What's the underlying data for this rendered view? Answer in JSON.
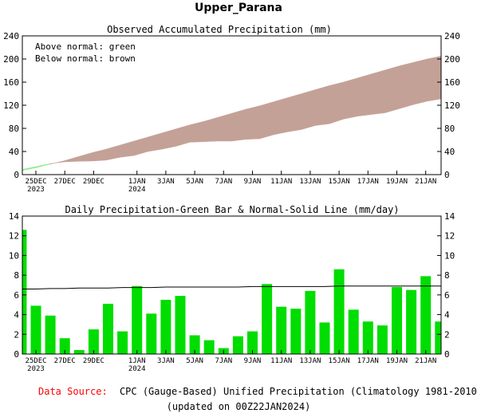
{
  "title": "Upper_Parana",
  "x_labels": [
    {
      "day": 0,
      "lines": [
        "25DEC",
        "2023"
      ]
    },
    {
      "day": 2,
      "lines": [
        "27DEC"
      ]
    },
    {
      "day": 4,
      "lines": [
        "29DEC"
      ]
    },
    {
      "day": 7,
      "lines": [
        "1JAN",
        "2024"
      ]
    },
    {
      "day": 9,
      "lines": [
        "3JAN"
      ]
    },
    {
      "day": 11,
      "lines": [
        "5JAN"
      ]
    },
    {
      "day": 13,
      "lines": [
        "7JAN"
      ]
    },
    {
      "day": 15,
      "lines": [
        "9JAN"
      ]
    },
    {
      "day": 17,
      "lines": [
        "11JAN"
      ]
    },
    {
      "day": 19,
      "lines": [
        "13JAN"
      ]
    },
    {
      "day": 21,
      "lines": [
        "15JAN"
      ]
    },
    {
      "day": 23,
      "lines": [
        "17JAN"
      ]
    },
    {
      "day": 25,
      "lines": [
        "19JAN"
      ]
    },
    {
      "day": 27,
      "lines": [
        "21JAN"
      ]
    }
  ],
  "chart_data": [
    {
      "type": "area",
      "title": "Observed Accumulated Precipitation (mm)",
      "legend": [
        "Above normal: green",
        "Below normal: brown"
      ],
      "legend_placement": "top-left",
      "colors": {
        "above": "#90ee90",
        "below": "#c4a197"
      },
      "ylim": [
        0,
        240
      ],
      "yticks": [
        0,
        40,
        80,
        120,
        160,
        200,
        240
      ],
      "x": [
        "23DEC",
        "24DEC",
        "25DEC",
        "26DEC",
        "27DEC",
        "28DEC",
        "29DEC",
        "30DEC",
        "31DEC",
        "1JAN",
        "2JAN",
        "3JAN",
        "4JAN",
        "5JAN",
        "6JAN",
        "7JAN",
        "8JAN",
        "9JAN",
        "10JAN",
        "11JAN",
        "12JAN",
        "13JAN",
        "14JAN",
        "15JAN",
        "16JAN",
        "17JAN",
        "18JAN",
        "19JAN",
        "20JAN",
        "21JAN",
        "22JAN"
      ],
      "series": [
        {
          "name": "Observed",
          "values": [
            9,
            14,
            19,
            22,
            23,
            23.5,
            25,
            30,
            33,
            40,
            44,
            49,
            56,
            57,
            58,
            58,
            61,
            62,
            69,
            74,
            78,
            85,
            88,
            96,
            101,
            104,
            107,
            114,
            121,
            127,
            131
          ]
        },
        {
          "name": "Normal",
          "values": [
            7,
            12,
            18,
            24,
            31,
            38,
            44,
            51,
            58,
            65,
            72,
            79,
            86,
            92,
            99,
            106,
            113,
            119,
            126,
            133,
            140,
            147,
            154,
            160,
            167,
            174,
            181,
            188,
            194,
            200,
            205
          ]
        }
      ]
    },
    {
      "type": "bar",
      "title": "Daily Precipitation-Green Bar & Normal-Solid Line (mm/day)",
      "colors": {
        "bar": "#00dd00",
        "line": "#000000"
      },
      "ylim": [
        0,
        14
      ],
      "yticks": [
        0,
        2,
        4,
        6,
        8,
        10,
        12,
        14
      ],
      "categories": [
        "24DEC",
        "25DEC",
        "26DEC",
        "27DEC",
        "28DEC",
        "29DEC",
        "30DEC",
        "31DEC",
        "1JAN",
        "2JAN",
        "3JAN",
        "4JAN",
        "5JAN",
        "6JAN",
        "7JAN",
        "8JAN",
        "9JAN",
        "10JAN",
        "11JAN",
        "12JAN",
        "13JAN",
        "14JAN",
        "15JAN",
        "16JAN",
        "17JAN",
        "18JAN",
        "19JAN",
        "20JAN",
        "21JAN",
        "22JAN"
      ],
      "series": [
        {
          "name": "Daily Precipitation",
          "values": [
            12.6,
            4.9,
            3.9,
            1.6,
            0.4,
            2.5,
            5.1,
            2.3,
            6.9,
            4.1,
            5.5,
            5.9,
            1.9,
            1.4,
            0.6,
            1.8,
            2.3,
            7.1,
            4.8,
            4.6,
            6.4,
            3.2,
            8.6,
            4.5,
            3.3,
            2.9,
            6.8,
            6.5,
            7.9,
            3.3
          ]
        },
        {
          "name": "Normal",
          "values": [
            6.6,
            6.6,
            6.65,
            6.65,
            6.7,
            6.7,
            6.7,
            6.75,
            6.75,
            6.75,
            6.8,
            6.8,
            6.8,
            6.8,
            6.8,
            6.8,
            6.85,
            6.85,
            6.85,
            6.85,
            6.85,
            6.85,
            6.9,
            6.9,
            6.9,
            6.9,
            6.9,
            6.9,
            6.9,
            6.9
          ]
        }
      ]
    }
  ],
  "footer": {
    "source_label": "Data Source:",
    "source_text": "CPC (Gauge-Based) Unified Precipitation (Climatology 1981-2010)",
    "updated": "(updated on 00Z22JAN2024)",
    "source_color": "#ff0000"
  }
}
